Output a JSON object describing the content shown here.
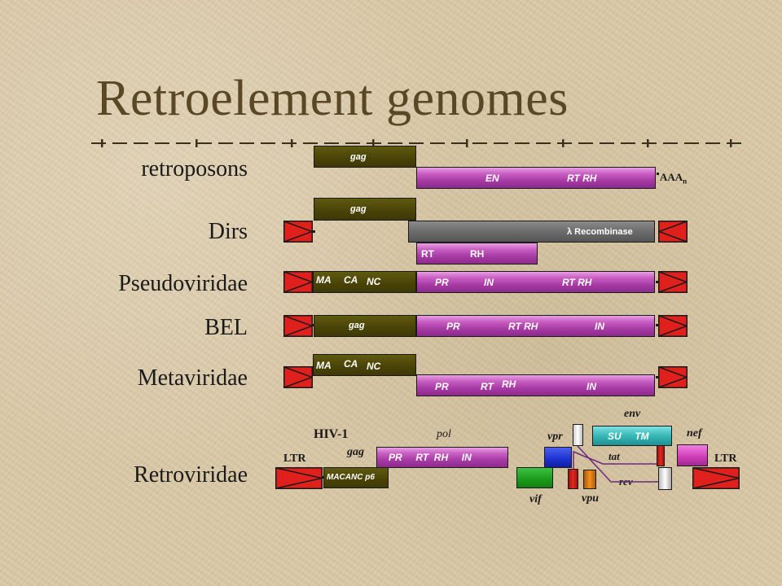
{
  "slide": {
    "title": "Retroelement genomes"
  },
  "rows": {
    "retroposons": {
      "label": "retroposons",
      "gag": "gag",
      "en": "EN",
      "rt_rh": "RT RH",
      "poly_a": "AAA",
      "poly_a_sub": "n"
    },
    "dirs": {
      "label": "Dirs",
      "gag": "gag",
      "recombinase": "λ Recombinase",
      "rt": "RT",
      "rh": "RH"
    },
    "pseudoviridae": {
      "label": "Pseudoviridae",
      "ma": "MA",
      "ca": "CA",
      "nc": "NC",
      "pr": "PR",
      "in": "IN",
      "rt_rh": "RT RH"
    },
    "bel": {
      "label": "BEL",
      "gag": "gag",
      "pr": "PR",
      "rt_rh": "RT RH",
      "in": "IN"
    },
    "metaviridae": {
      "label": "Metaviridae",
      "ma": "MA",
      "ca": "CA",
      "nc": "NC",
      "pr": "PR",
      "rt": "RT",
      "rh": "RH",
      "in": "IN"
    },
    "retroviridae": {
      "label": "Retroviridae",
      "virus": "HIV-1",
      "ltr_left": "LTR",
      "ltr_right": "LTR",
      "gag": "gag",
      "gag_domains": "MACANC p6",
      "pol": "pol",
      "pol_domains": "PR     RT  RH     IN",
      "vif": "vif",
      "vpr": "vpr",
      "vpu": "vpu",
      "tat": "tat",
      "rev": "rev",
      "env": "env",
      "su_tm": "SU     TM",
      "nef": "nef"
    }
  },
  "colors": {
    "olive": "#4b4408",
    "purple": "#a63aa4",
    "gray": "#6c6c6c",
    "ltr_red": "#e0201c",
    "vif_green": "#1a9a1a",
    "vpr_blue": "#1c2fd0",
    "vpu_orange": "#e07a10",
    "env_teal": "#38b8b8",
    "tat_red": "#d81c10"
  }
}
